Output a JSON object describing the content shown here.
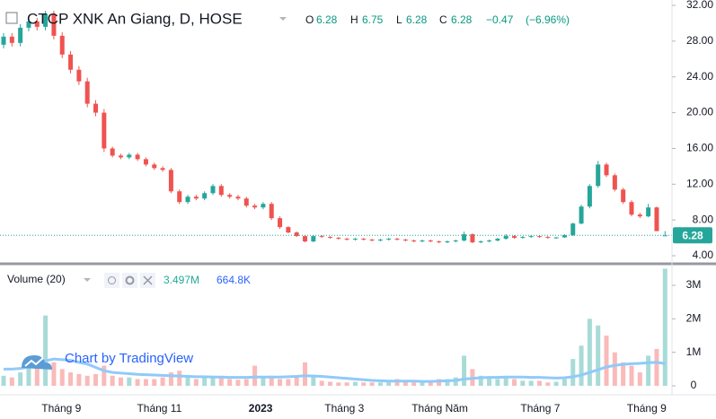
{
  "chart_data": [
    {
      "type": "candlestick",
      "title": "CTCP XNK An Giang, D, HOSE",
      "ohlc_letters": [
        "O",
        "H",
        "L",
        "C"
      ],
      "change": "−0.47",
      "change_percent": "(−6.96%)",
      "open": [
        27.6,
        28.5,
        27.8,
        29.5,
        30.2,
        29.6,
        31.0,
        28.6,
        26.5,
        24.8,
        23.5,
        21.0,
        20.0,
        16.0,
        15.2,
        15.0,
        15.3,
        14.8,
        14.2,
        13.8,
        13.6,
        11.2,
        10.0,
        10.6,
        10.4,
        11.0,
        11.8,
        10.8,
        10.6,
        10.4,
        9.6,
        9.4,
        9.8,
        8.2,
        7.2,
        6.6,
        6.2,
        5.6,
        6.2,
        6.1,
        6.0,
        5.9,
        5.8,
        5.9,
        5.8,
        5.7,
        5.8,
        5.9,
        5.8,
        5.7,
        5.6,
        5.7,
        5.6,
        5.5,
        5.6,
        5.7,
        6.4,
        5.5,
        5.6,
        5.7,
        5.9,
        6.2,
        6.0,
        6.1,
        6.2,
        6.1,
        6.0,
        6.05,
        6.3,
        7.6,
        9.5,
        11.8,
        14.2,
        13.0,
        11.4,
        10.0,
        8.6,
        8.4,
        9.4,
        6.28
      ],
      "high": [
        28.9,
        28.9,
        29.9,
        30.6,
        30.6,
        31.4,
        31.4,
        29.0,
        26.9,
        25.2,
        23.9,
        21.4,
        20.4,
        16.2,
        15.4,
        15.5,
        15.5,
        15.0,
        14.4,
        14.0,
        13.8,
        11.4,
        10.8,
        10.8,
        11.2,
        12.0,
        12.0,
        11.0,
        10.8,
        10.6,
        9.8,
        10.0,
        10.0,
        8.4,
        7.3,
        6.7,
        6.3,
        6.3,
        6.3,
        6.2,
        6.1,
        6.0,
        6.0,
        6.0,
        5.9,
        5.9,
        6.0,
        6.0,
        5.9,
        5.8,
        5.8,
        5.8,
        5.7,
        5.7,
        5.8,
        6.7,
        6.5,
        5.7,
        5.8,
        6.0,
        6.4,
        6.3,
        6.2,
        6.3,
        6.3,
        6.2,
        6.1,
        6.4,
        7.7,
        9.7,
        12.0,
        14.6,
        14.4,
        13.2,
        11.6,
        10.2,
        8.8,
        9.8,
        9.5,
        6.75
      ],
      "low": [
        27.2,
        27.4,
        27.4,
        29.1,
        29.2,
        29.2,
        28.2,
        26.1,
        24.4,
        23.1,
        20.6,
        19.6,
        15.6,
        15.0,
        14.8,
        14.8,
        14.6,
        14.0,
        13.6,
        13.4,
        11.0,
        9.8,
        9.8,
        10.2,
        10.2,
        10.8,
        10.6,
        10.4,
        10.2,
        9.4,
        9.2,
        9.2,
        8.0,
        7.0,
        6.5,
        6.1,
        5.5,
        5.5,
        6.0,
        5.9,
        5.8,
        5.7,
        5.7,
        5.7,
        5.6,
        5.6,
        5.7,
        5.7,
        5.6,
        5.5,
        5.5,
        5.5,
        5.4,
        5.4,
        5.5,
        5.6,
        5.4,
        5.4,
        5.5,
        5.6,
        5.8,
        5.9,
        5.9,
        6.0,
        6.0,
        5.9,
        5.9,
        6.0,
        6.2,
        7.5,
        9.3,
        11.6,
        12.8,
        11.2,
        9.8,
        8.4,
        8.2,
        8.3,
        6.75,
        6.28
      ],
      "close": [
        28.5,
        27.8,
        29.5,
        30.2,
        29.6,
        31.0,
        28.6,
        26.5,
        24.8,
        23.5,
        21.0,
        20.0,
        16.0,
        15.2,
        15.0,
        15.3,
        14.8,
        14.2,
        13.8,
        13.6,
        11.2,
        10.0,
        10.6,
        10.4,
        11.0,
        11.8,
        10.8,
        10.6,
        10.4,
        9.6,
        9.4,
        9.8,
        8.2,
        7.2,
        6.6,
        6.2,
        5.6,
        6.2,
        6.1,
        6.0,
        5.9,
        5.8,
        5.9,
        5.8,
        5.7,
        5.8,
        5.9,
        5.8,
        5.7,
        5.6,
        5.7,
        5.6,
        5.5,
        5.6,
        5.7,
        6.4,
        5.5,
        5.6,
        5.7,
        5.9,
        6.2,
        6.0,
        6.1,
        6.2,
        6.1,
        6.0,
        6.05,
        6.3,
        7.6,
        9.5,
        11.8,
        14.2,
        13.0,
        11.4,
        10.0,
        8.6,
        8.4,
        9.4,
        6.75,
        6.28
      ],
      "up_color": "#26a69a",
      "down_color": "#ef5350",
      "grid": true,
      "ylim": [
        3.3,
        32.6
      ],
      "yticks": [
        {
          "value": 4,
          "label": "4.00"
        },
        {
          "value": 8,
          "label": "8.00"
        },
        {
          "value": 12,
          "label": "12.00"
        },
        {
          "value": 16,
          "label": "16.00"
        },
        {
          "value": 20,
          "label": "20.00"
        },
        {
          "value": 24,
          "label": "24.00"
        },
        {
          "value": 28,
          "label": "28.00"
        },
        {
          "value": 32,
          "label": "32.00"
        }
      ],
      "xticks": [
        {
          "value": 6.9,
          "label": "Tháng 9"
        },
        {
          "value": 18.6,
          "label": "Tháng 11"
        },
        {
          "value": 30.7,
          "label": "2023"
        },
        {
          "value": 40.7,
          "label": "Tháng 3"
        },
        {
          "value": 52.1,
          "label": "Tháng Năm"
        },
        {
          "value": 64.1,
          "label": "Tháng 7"
        },
        {
          "value": 76.8,
          "label": "Tháng 9"
        }
      ],
      "watermark": "Chart by TradingView"
    },
    {
      "type": "bar",
      "title": "Volume (20)",
      "value_label": "3.497M",
      "ma_value_label": "664.8K",
      "ma_color": "#90caf9",
      "values": [
        300000,
        250000,
        400000,
        600000,
        900000,
        2100000,
        700000,
        500000,
        400000,
        350000,
        300000,
        350000,
        600000,
        300000,
        250000,
        250000,
        200000,
        200000,
        200000,
        250000,
        400000,
        450000,
        300000,
        200000,
        250000,
        300000,
        250000,
        200000,
        180000,
        200000,
        600000,
        250000,
        300000,
        200000,
        200000,
        250000,
        700000,
        300000,
        150000,
        120000,
        100000,
        100000,
        120000,
        100000,
        100000,
        100000,
        150000,
        200000,
        150000,
        100000,
        100000,
        150000,
        200000,
        200000,
        250000,
        900000,
        500000,
        300000,
        250000,
        200000,
        250000,
        200000,
        150000,
        150000,
        150000,
        100000,
        120000,
        200000,
        800000,
        1200000,
        2000000,
        1800000,
        1500000,
        1000000,
        700000,
        600000,
        400000,
        900000,
        1100000,
        3497000
      ],
      "ma_values": [
        500000,
        500000,
        520000,
        560000,
        620000,
        750000,
        800000,
        780000,
        760000,
        700000,
        650000,
        550000,
        450000,
        400000,
        380000,
        360000,
        340000,
        330000,
        320000,
        310000,
        300000,
        290000,
        280000,
        270000,
        270000,
        260000,
        260000,
        250000,
        250000,
        250000,
        260000,
        260000,
        260000,
        260000,
        270000,
        280000,
        300000,
        290000,
        280000,
        260000,
        240000,
        220000,
        200000,
        180000,
        160000,
        150000,
        140000,
        140000,
        140000,
        140000,
        130000,
        130000,
        140000,
        150000,
        160000,
        200000,
        220000,
        240000,
        250000,
        250000,
        260000,
        260000,
        260000,
        250000,
        250000,
        240000,
        230000,
        240000,
        270000,
        320000,
        400000,
        480000,
        560000,
        610000,
        640000,
        660000,
        670000,
        690000,
        700000,
        664800
      ],
      "ylim": [
        -268000,
        3536000
      ],
      "yticks": [
        0,
        {
          "value": 1000000,
          "label": "1M"
        },
        {
          "value": 2000000,
          "label": "2M"
        },
        {
          "value": 3000000,
          "label": "3M"
        }
      ]
    }
  ]
}
